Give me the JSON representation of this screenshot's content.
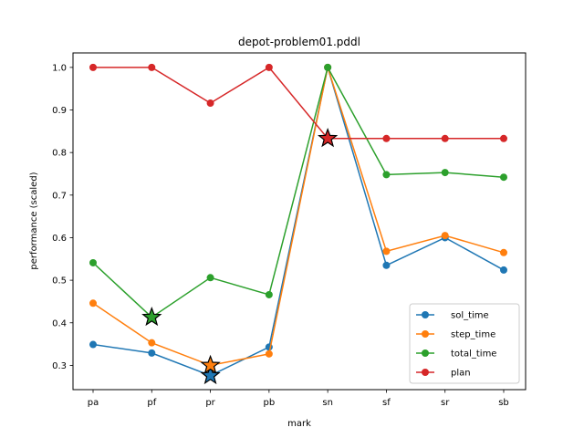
{
  "chart_data": {
    "type": "line",
    "title": "depot-problem01.pddl",
    "xlabel": "mark",
    "ylabel": "performance (scaled)",
    "categories": [
      "pa",
      "pf",
      "pr",
      "pb",
      "sn",
      "sf",
      "sr",
      "sb"
    ],
    "ylim": [
      0.243,
      1.034
    ],
    "yticks": [
      0.3,
      0.4,
      0.5,
      0.6,
      0.7,
      0.8,
      0.9,
      1.0
    ],
    "ytick_labels": [
      "0.3",
      "0.4",
      "0.5",
      "0.6",
      "0.7",
      "0.8",
      "0.9",
      "1.0"
    ],
    "grid": false,
    "legend_position": "lower-right",
    "series": [
      {
        "name": "sol_time",
        "color": "#1f77b4",
        "values": [
          0.349,
          0.329,
          0.276,
          0.343,
          1.0,
          0.535,
          0.6,
          0.524
        ]
      },
      {
        "name": "step_time",
        "color": "#ff7f0e",
        "values": [
          0.446,
          0.353,
          0.3,
          0.327,
          1.0,
          0.568,
          0.605,
          0.565
        ]
      },
      {
        "name": "total_time",
        "color": "#2ca02c",
        "values": [
          0.541,
          0.413,
          0.506,
          0.466,
          1.0,
          0.748,
          0.753,
          0.742
        ]
      },
      {
        "name": "plan",
        "color": "#d62728",
        "values": [
          1.0,
          1.0,
          0.916,
          1.0,
          0.833,
          0.833,
          0.833,
          0.833
        ]
      }
    ],
    "best_markers": [
      {
        "series": "sol_time",
        "category": "pr",
        "value": 0.276
      },
      {
        "series": "step_time",
        "category": "pr",
        "value": 0.3
      },
      {
        "series": "total_time",
        "category": "pf",
        "value": 0.413
      },
      {
        "series": "plan",
        "category": "sn",
        "value": 0.833
      }
    ]
  }
}
